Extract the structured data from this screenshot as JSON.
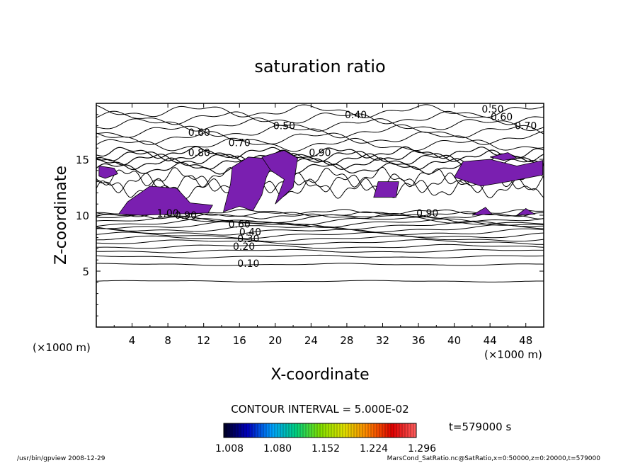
{
  "chart_data": {
    "type": "contour",
    "title": "saturation ratio",
    "xlabel": "X-coordinate",
    "ylabel": "Z-coordinate",
    "x_unit": "(×1000 m)",
    "z_unit": "(×1000 m)",
    "xlim": [
      0,
      50
    ],
    "ylim": [
      0,
      20
    ],
    "x_ticks": [
      4,
      8,
      12,
      16,
      20,
      24,
      28,
      32,
      36,
      40,
      44,
      48
    ],
    "y_ticks": [
      5,
      10,
      15
    ],
    "contour_interval_text": "CONTOUR INTERVAL = 5.000E-02",
    "time_text": "t=579000 s",
    "colorbar_labels": [
      "1.008",
      "1.080",
      "1.152",
      "1.224",
      "1.296"
    ],
    "colorbar_colors": [
      "#000020",
      "#0000c0",
      "#00a0ff",
      "#00d080",
      "#80e000",
      "#e0e000",
      "#ff8000",
      "#e00000",
      "#ff6060"
    ],
    "fill_color": "#7a1fb0",
    "contour_labels": [
      {
        "text": "0.10",
        "x": 17.0,
        "z": 5.7
      },
      {
        "text": "0.20",
        "x": 16.5,
        "z": 7.2
      },
      {
        "text": "0.30",
        "x": 17.0,
        "z": 7.9
      },
      {
        "text": "0.40",
        "x": 17.2,
        "z": 8.5
      },
      {
        "text": "0.60",
        "x": 16.0,
        "z": 9.2
      },
      {
        "text": "0.90",
        "x": 10.0,
        "z": 10.0
      },
      {
        "text": "1.00",
        "x": 8.0,
        "z": 10.2
      },
      {
        "text": "0.90",
        "x": 37.0,
        "z": 10.2
      },
      {
        "text": "0.40",
        "x": 29.0,
        "z": 19.0
      },
      {
        "text": "0.50",
        "x": 21.0,
        "z": 18.0
      },
      {
        "text": "0.60",
        "x": 11.5,
        "z": 17.4
      },
      {
        "text": "0.70",
        "x": 16.0,
        "z": 16.5
      },
      {
        "text": "0.80",
        "x": 11.5,
        "z": 15.6
      },
      {
        "text": "0.90",
        "x": 25.0,
        "z": 15.6
      },
      {
        "text": "0.50",
        "x": 44.3,
        "z": 19.5
      },
      {
        "text": "0.60",
        "x": 45.3,
        "z": 18.8
      },
      {
        "text": "0.70",
        "x": 48.0,
        "z": 18.0
      }
    ],
    "grid": false
  },
  "footer": {
    "left": "/usr/bin/gpview   2008-12-29",
    "right": "MarsCond_SatRatio.nc@SatRatio,x=0:50000,z=0:20000,t=579000"
  }
}
